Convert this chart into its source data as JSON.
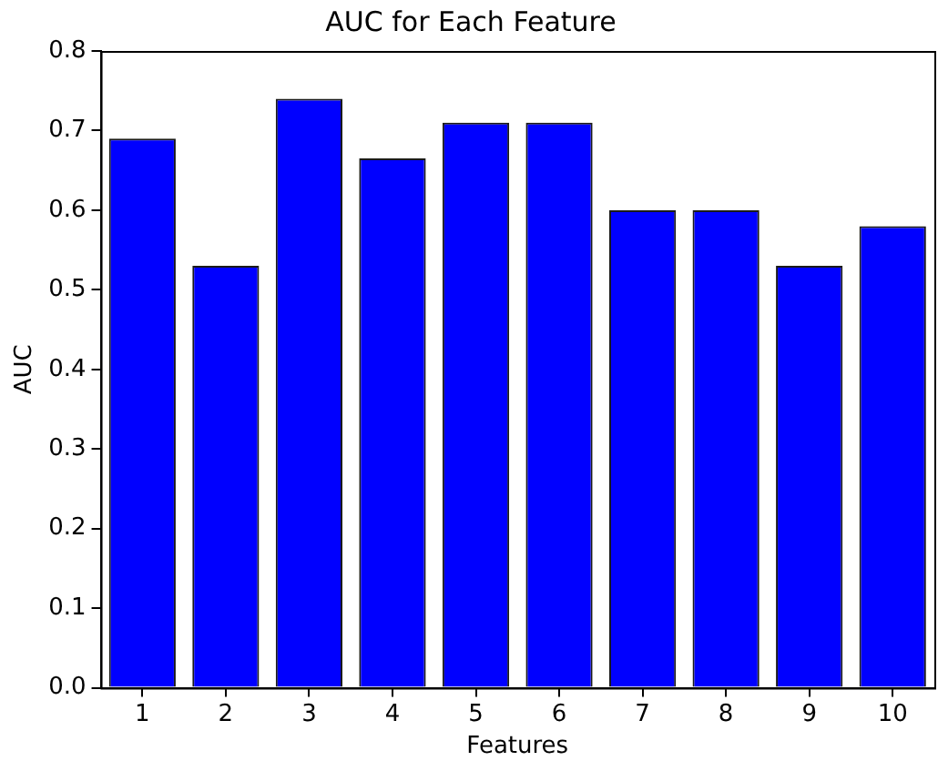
{
  "chart_data": {
    "type": "bar",
    "title": "AUC for Each Feature",
    "xlabel": "Features",
    "ylabel": "AUC",
    "categories": [
      "1",
      "2",
      "3",
      "4",
      "5",
      "6",
      "7",
      "8",
      "9",
      "10"
    ],
    "values": [
      0.69,
      0.53,
      0.74,
      0.665,
      0.71,
      0.71,
      0.6,
      0.6,
      0.53,
      0.58
    ],
    "color": "#0000ff",
    "ylim": [
      0,
      0.8
    ],
    "yticks": [
      {
        "value": 0,
        "label": "0.0"
      },
      {
        "value": 0.1,
        "label": "0.1"
      },
      {
        "value": 0.2,
        "label": "0.2"
      },
      {
        "value": 0.3,
        "label": "0.3"
      },
      {
        "value": 0.4,
        "label": "0.4"
      },
      {
        "value": 0.5,
        "label": "0.5"
      },
      {
        "value": 0.6,
        "label": "0.6"
      },
      {
        "value": 0.7,
        "label": "0.7"
      },
      {
        "value": 0.8,
        "label": "0.8"
      }
    ],
    "grid": false,
    "legend": false
  }
}
